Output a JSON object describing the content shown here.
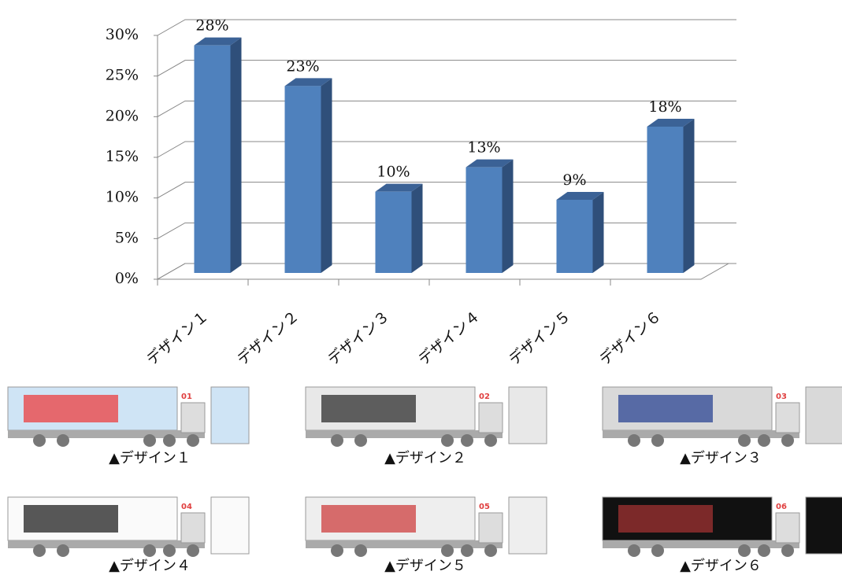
{
  "chart_data": {
    "type": "bar3d",
    "categories": [
      "デザイン１",
      "デザイン２",
      "デザイン３",
      "デザイン４",
      "デザイン５",
      "デザイン６"
    ],
    "values": [
      28,
      23,
      10,
      13,
      9,
      18
    ],
    "value_labels": [
      "28%",
      "23%",
      "10%",
      "13%",
      "9%",
      "18%"
    ],
    "color": "#4f81bd",
    "ylim": [
      0,
      30
    ],
    "yticks": [
      {
        "value": 0,
        "label": "0%"
      },
      {
        "value": 5,
        "label": "5%"
      },
      {
        "value": 10,
        "label": "10%"
      },
      {
        "value": 15,
        "label": "15%"
      },
      {
        "value": 20,
        "label": "20%"
      },
      {
        "value": 25,
        "label": "25%"
      },
      {
        "value": 30,
        "label": "30%"
      }
    ],
    "grid": true
  },
  "gallery": {
    "items": [
      {
        "badge": "01",
        "caption": "▲デザイン１"
      },
      {
        "badge": "02",
        "caption": "▲デザイン２"
      },
      {
        "badge": "03",
        "caption": "▲デザイン３"
      },
      {
        "badge": "04",
        "caption": "▲デザイン４"
      },
      {
        "badge": "05",
        "caption": "▲デザイン５"
      },
      {
        "badge": "06",
        "caption": "▲デザイン６"
      }
    ]
  }
}
